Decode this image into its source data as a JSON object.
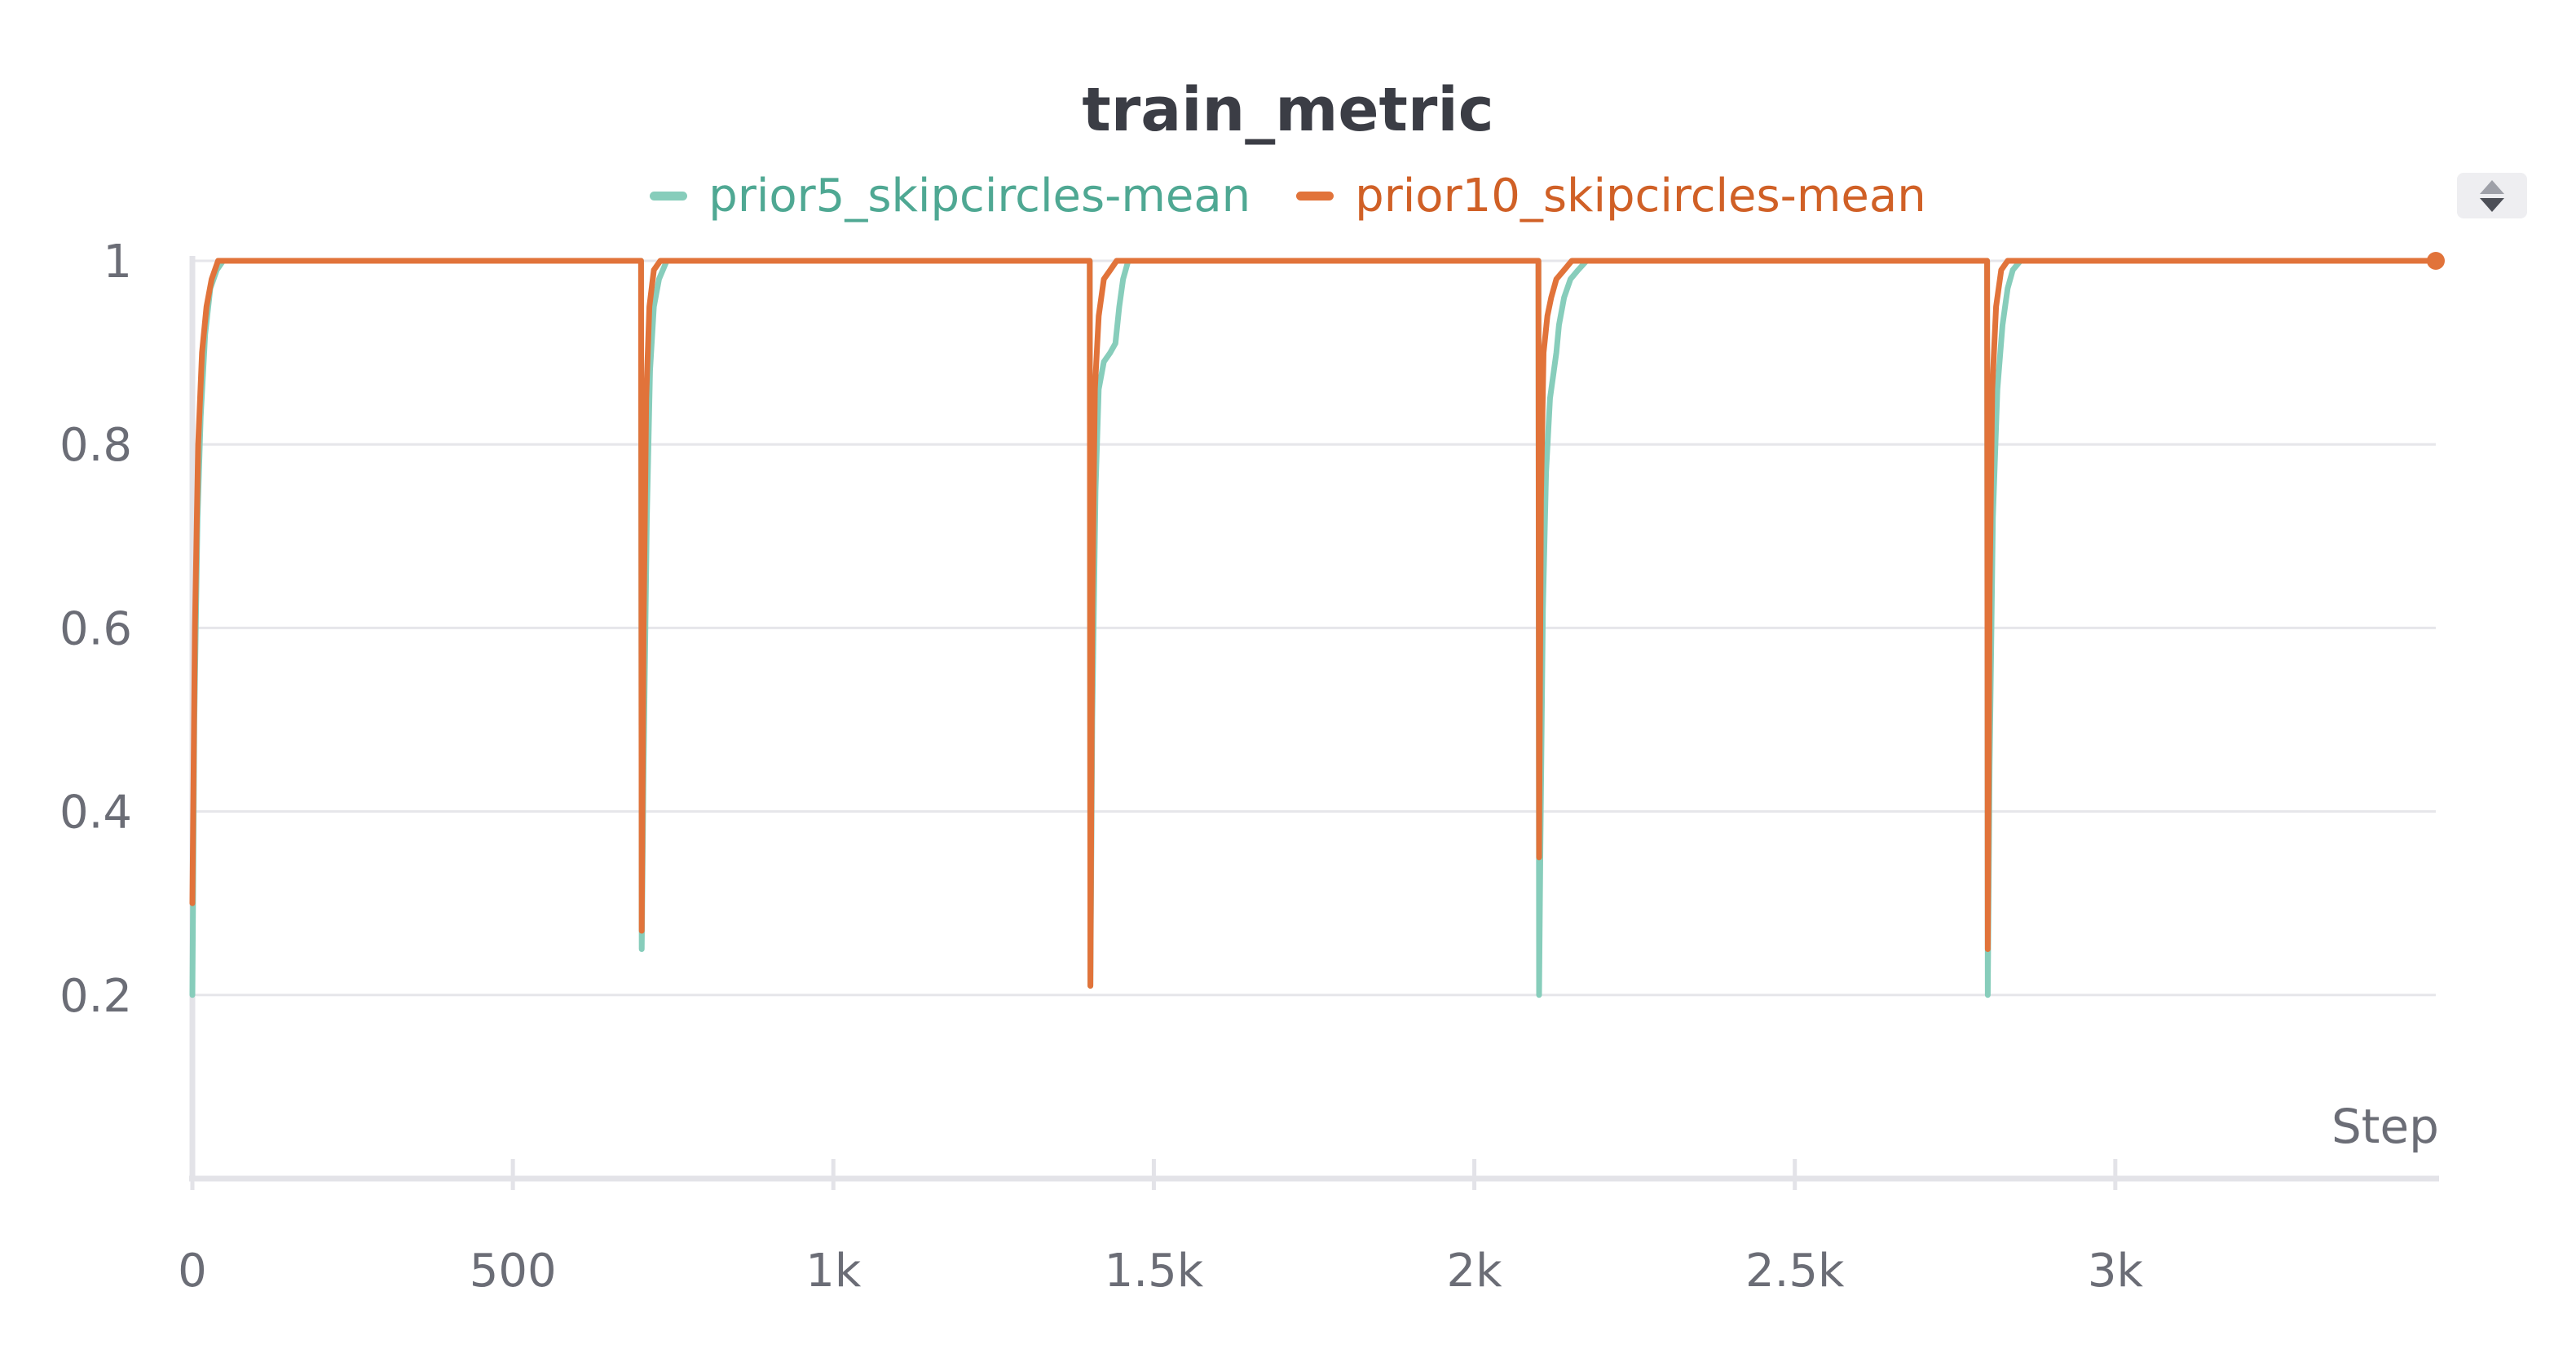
{
  "chart_data": {
    "type": "line",
    "title": "train_metric",
    "xlabel": "Step",
    "ylabel": "",
    "xlim": [
      0,
      3500
    ],
    "ylim": [
      0,
      1
    ],
    "grid": true,
    "legend_placement": "top-center",
    "x_ticks": [
      {
        "value": 0,
        "label": "0"
      },
      {
        "value": 500,
        "label": "500"
      },
      {
        "value": 1000,
        "label": "1k"
      },
      {
        "value": 1500,
        "label": "1.5k"
      },
      {
        "value": 2000,
        "label": "2k"
      },
      {
        "value": 2500,
        "label": "2.5k"
      },
      {
        "value": 3000,
        "label": "3k"
      }
    ],
    "y_ticks": [
      {
        "value": 0.2,
        "label": "0.2"
      },
      {
        "value": 0.4,
        "label": "0.4"
      },
      {
        "value": 0.6,
        "label": "0.6"
      },
      {
        "value": 0.8,
        "label": "0.8"
      },
      {
        "value": 1,
        "label": "1"
      }
    ],
    "series": [
      {
        "name": "prior5_skipcircles-mean",
        "color": "#87cdbb",
        "label_color": "#4fa893",
        "points": [
          [
            0,
            0.2
          ],
          [
            3,
            0.5
          ],
          [
            8,
            0.72
          ],
          [
            13,
            0.83
          ],
          [
            20,
            0.92
          ],
          [
            28,
            0.97
          ],
          [
            38,
            0.99
          ],
          [
            48,
            1
          ],
          [
            700,
            1
          ],
          [
            701,
            0.25
          ],
          [
            704,
            0.45
          ],
          [
            709,
            0.72
          ],
          [
            714,
            0.88
          ],
          [
            720,
            0.95
          ],
          [
            728,
            0.98
          ],
          [
            740,
            1
          ],
          [
            1400,
            1
          ],
          [
            1401,
            0.21
          ],
          [
            1404,
            0.5
          ],
          [
            1409,
            0.75
          ],
          [
            1414,
            0.86
          ],
          [
            1422,
            0.89
          ],
          [
            1432,
            0.9
          ],
          [
            1440,
            0.91
          ],
          [
            1446,
            0.95
          ],
          [
            1452,
            0.98
          ],
          [
            1460,
            1
          ],
          [
            2100,
            1
          ],
          [
            2101,
            0.2
          ],
          [
            2103,
            0.36
          ],
          [
            2107,
            0.62
          ],
          [
            2112,
            0.77
          ],
          [
            2118,
            0.85
          ],
          [
            2124,
            0.88
          ],
          [
            2128,
            0.9
          ],
          [
            2132,
            0.93
          ],
          [
            2140,
            0.96
          ],
          [
            2150,
            0.98
          ],
          [
            2162,
            0.99
          ],
          [
            2175,
            1
          ],
          [
            2800,
            1
          ],
          [
            2801,
            0.2
          ],
          [
            2804,
            0.45
          ],
          [
            2809,
            0.72
          ],
          [
            2816,
            0.86
          ],
          [
            2824,
            0.93
          ],
          [
            2832,
            0.97
          ],
          [
            2840,
            0.99
          ],
          [
            2852,
            1
          ],
          [
            3500,
            1
          ]
        ]
      },
      {
        "name": "prior10_skipcircles-mean",
        "color": "#e1733a",
        "label_color": "#d06026",
        "points": [
          [
            0,
            0.3
          ],
          [
            4,
            0.6
          ],
          [
            9,
            0.8
          ],
          [
            15,
            0.9
          ],
          [
            22,
            0.95
          ],
          [
            30,
            0.98
          ],
          [
            40,
            1
          ],
          [
            700,
            1
          ],
          [
            701,
            0.27
          ],
          [
            704,
            0.6
          ],
          [
            708,
            0.85
          ],
          [
            713,
            0.95
          ],
          [
            720,
            0.99
          ],
          [
            730,
            1
          ],
          [
            1400,
            1
          ],
          [
            1401,
            0.21
          ],
          [
            1404,
            0.62
          ],
          [
            1408,
            0.86
          ],
          [
            1414,
            0.94
          ],
          [
            1422,
            0.98
          ],
          [
            1432,
            0.99
          ],
          [
            1442,
            1
          ],
          [
            2100,
            1
          ],
          [
            2101,
            0.35
          ],
          [
            2104,
            0.74
          ],
          [
            2108,
            0.9
          ],
          [
            2114,
            0.94
          ],
          [
            2120,
            0.96
          ],
          [
            2128,
            0.98
          ],
          [
            2140,
            0.99
          ],
          [
            2152,
            1
          ],
          [
            2800,
            1
          ],
          [
            2801,
            0.25
          ],
          [
            2804,
            0.64
          ],
          [
            2808,
            0.86
          ],
          [
            2814,
            0.95
          ],
          [
            2822,
            0.99
          ],
          [
            2832,
            1
          ],
          [
            3500,
            1
          ]
        ]
      }
    ],
    "end_marker": {
      "x": 3500,
      "y": 1
    }
  }
}
